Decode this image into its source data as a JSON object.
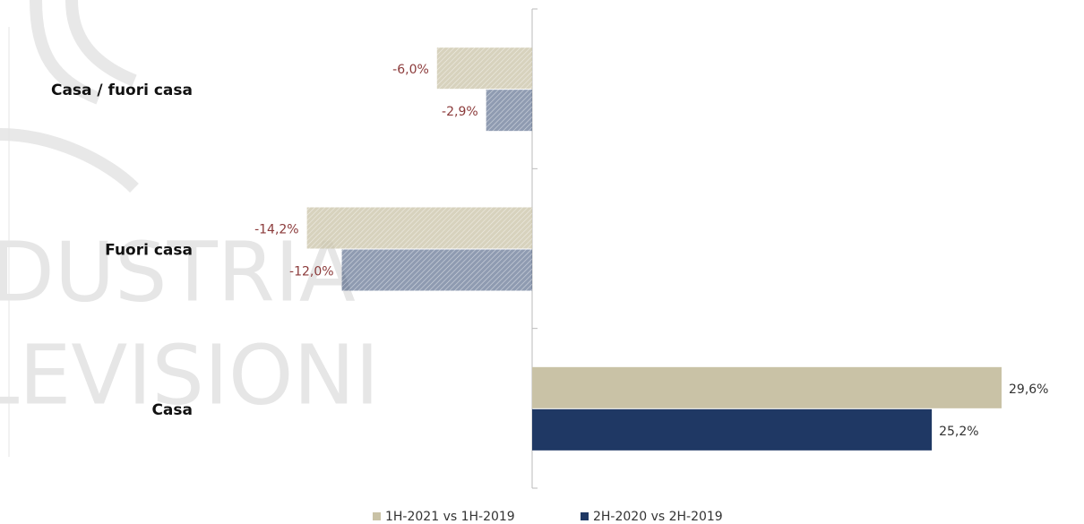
{
  "chart_data": {
    "type": "hbar",
    "watermark": [
      "DUSTRIA",
      "LEVISIONI"
    ],
    "categories": [
      "Casa / fuori casa",
      "Fuori casa",
      "Casa"
    ],
    "series": [
      {
        "name": "1H-2021 vs 1H-2019",
        "color": "#c9c2a6",
        "values": [
          -6.0,
          -14.2,
          29.6
        ],
        "value_labels": [
          "-6,0%",
          "-14,2%",
          "29,6%"
        ]
      },
      {
        "name": "2H-2020 vs 2H-2019",
        "color": "#1f3864",
        "values": [
          -2.9,
          -12.0,
          25.2
        ],
        "value_labels": [
          "-2,9%",
          "-12,0%",
          "25,2%"
        ]
      }
    ]
  }
}
